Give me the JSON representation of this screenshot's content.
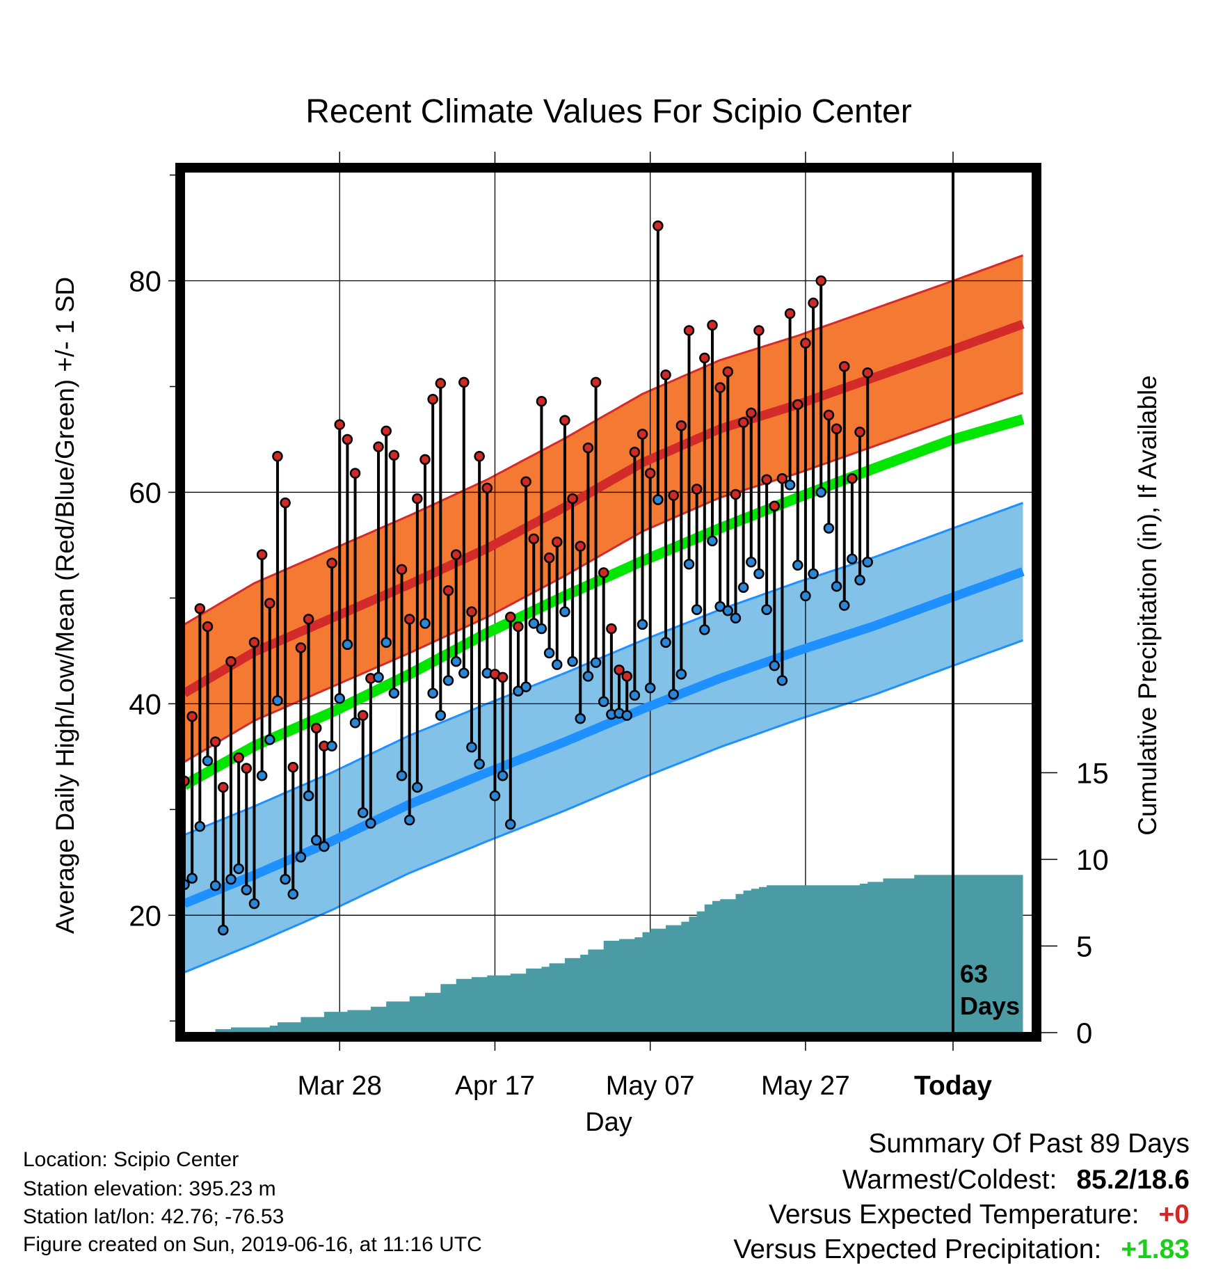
{
  "chart_data": {
    "type": "line",
    "title": "Recent Climate Values For Scipio Center",
    "xlabel": "Day",
    "ylabel": "Average Daily High/Low/Mean (Red/Blue/Green) +/- 1 SD",
    "ylabel_right": "Cumulative Precipitation (in), If Available",
    "x_ticks": [
      "Mar 28",
      "Apr 17",
      "May 07",
      "May 27",
      "Today"
    ],
    "y_ticks": [
      20,
      40,
      60,
      80
    ],
    "y_right_ticks": [
      0,
      5,
      10,
      15
    ],
    "ylim": [
      8.9,
      90.3
    ],
    "xlim": [
      -99,
      0
    ],
    "grid": true,
    "days_marker": "63 Days",
    "normals": {
      "day": [
        -99,
        -90,
        -80,
        -70,
        -60,
        -50,
        -40,
        -30,
        -20,
        -10,
        0,
        9
      ],
      "mean_high": [
        41.0,
        44.9,
        48.1,
        51.3,
        54.7,
        58.6,
        62.8,
        66.0,
        68.3,
        70.9,
        73.5,
        75.9
      ],
      "mean_low": [
        21.1,
        23.8,
        27.0,
        30.5,
        33.5,
        36.4,
        39.5,
        42.4,
        45.0,
        47.4,
        50.1,
        52.5
      ],
      "mean_avg": [
        32.3,
        36.0,
        39.2,
        42.8,
        46.7,
        50.2,
        53.5,
        56.6,
        59.5,
        62.3,
        65.0,
        66.9
      ],
      "sd": 6.5
    },
    "series": [
      {
        "name": "High",
        "values": [
          32.7,
          38.8,
          49.0,
          47.3,
          36.4,
          32.1,
          44.0,
          34.9,
          33.9,
          45.8,
          54.1,
          49.5,
          63.4,
          59.0,
          34.0,
          45.3,
          48.0,
          37.7,
          36.0,
          53.3,
          66.4,
          65.0,
          61.8,
          38.9,
          42.4,
          64.3,
          65.8,
          63.5,
          52.7,
          48.0,
          59.4,
          63.1,
          68.8,
          70.3,
          50.7,
          54.1,
          70.4,
          48.7,
          63.4,
          60.4,
          42.8,
          42.5,
          48.2,
          47.3,
          61.0,
          55.6,
          68.6,
          53.8,
          55.3,
          66.8,
          59.4,
          54.9,
          64.2,
          70.4,
          52.4,
          47.1,
          43.2,
          42.6,
          63.8,
          65.5,
          61.8,
          85.2,
          71.1,
          59.7,
          66.3,
          75.3,
          60.3,
          72.7,
          75.8,
          69.9,
          71.4,
          59.8,
          66.6,
          67.5,
          75.3,
          61.2,
          58.7,
          61.3,
          76.9,
          68.3,
          74.1,
          77.9,
          80.0,
          67.3,
          66.0,
          71.9,
          61.3,
          65.7,
          71.3
        ]
      },
      {
        "name": "Low",
        "values": [
          22.9,
          23.5,
          28.4,
          34.6,
          22.8,
          18.6,
          23.4,
          24.4,
          22.4,
          21.1,
          33.2,
          36.6,
          40.3,
          23.4,
          22.0,
          25.5,
          31.3,
          27.1,
          26.5,
          36.0,
          40.5,
          45.6,
          38.2,
          29.7,
          28.7,
          42.5,
          45.8,
          41.0,
          33.2,
          29.0,
          32.1,
          47.6,
          41.0,
          38.9,
          42.2,
          44.0,
          42.9,
          35.9,
          34.3,
          42.9,
          31.3,
          33.2,
          28.6,
          41.2,
          41.6,
          47.6,
          47.1,
          44.8,
          43.7,
          48.7,
          44.0,
          38.6,
          42.6,
          43.9,
          40.2,
          39.0,
          39.1,
          38.9,
          40.8,
          47.5,
          41.5,
          59.3,
          45.8,
          40.9,
          42.8,
          53.2,
          48.9,
          47.0,
          55.4,
          49.2,
          48.8,
          48.1,
          51.0,
          53.4,
          52.3,
          48.9,
          43.6,
          42.2,
          60.7,
          53.1,
          50.2,
          52.3,
          60.0,
          56.6,
          51.1,
          49.3,
          53.7,
          51.7,
          53.4
        ]
      },
      {
        "name": "Cumulative Precipitation",
        "day": [
          -99,
          -95,
          -93,
          -88,
          -87,
          -84,
          -81,
          -78,
          -75,
          -73,
          -70,
          -68,
          -66,
          -64,
          -62,
          -60,
          -57,
          -55,
          -53,
          -52,
          -50,
          -48,
          -47,
          -45,
          -43,
          -41,
          -40,
          -39,
          -37,
          -35,
          -34,
          -33,
          -32,
          -31,
          -30,
          -28,
          -27,
          -26,
          -25,
          -24,
          -17,
          -15,
          -13,
          -12,
          -11,
          -10,
          -9,
          -5,
          9
        ],
        "values": [
          0,
          0.2,
          0.3,
          0.4,
          0.6,
          0.9,
          1.2,
          1.3,
          1.5,
          1.8,
          2.1,
          2.3,
          2.8,
          3.1,
          3.2,
          3.3,
          3.4,
          3.7,
          3.8,
          4.0,
          4.3,
          4.5,
          4.8,
          5.3,
          5.4,
          5.5,
          5.8,
          6.0,
          6.2,
          6.4,
          6.7,
          7.0,
          7.4,
          7.6,
          7.7,
          8.0,
          8.2,
          8.3,
          8.4,
          8.5,
          8.5,
          8.5,
          8.5,
          8.6,
          8.7,
          8.7,
          8.9,
          9.1,
          9.1
        ]
      }
    ]
  },
  "info": {
    "location": "Location: Scipio Center",
    "elevation": "Station elevation: 395.23 m",
    "latlon": "Station lat/lon: 42.76; -76.53",
    "created": "Figure created on Sun, 2019-06-16, at 11:16 UTC"
  },
  "summary": {
    "title": "Summary Of Past 89 Days",
    "warm_cold_label": "Warmest/Coldest:",
    "warm_cold_value": "85.2/18.6",
    "temp_label": "Versus Expected Temperature:",
    "temp_value": "+0",
    "precip_label": "Versus Expected Precipitation:",
    "precip_value": "+1.83"
  },
  "colors": {
    "high_band": "#f47a33",
    "high_line": "#d32a2a",
    "low_band": "#82c1e8",
    "low_line": "#1e90ff",
    "mean_line": "#00e600",
    "precip": "#4a9ba3",
    "temp_value": "#d62728",
    "precip_value": "#18d018"
  }
}
